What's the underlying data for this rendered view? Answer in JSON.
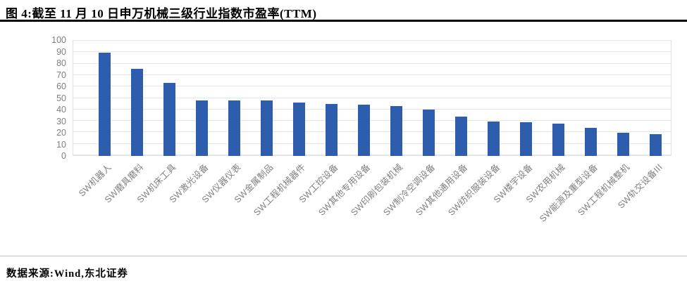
{
  "header": {
    "title": "图 4:截至 11 月 10 日申万机械三级行业指数市盈率(TTM)"
  },
  "footer": {
    "source_label": "数据来源:Wind,东北证券"
  },
  "colors": {
    "bar": "#2e5dad",
    "grid": "#e6e6e6",
    "plot_border": "#e2e2e2",
    "axis_text": "#7f7f7f",
    "title_rule": "#000000",
    "footer_rule": "#bfbfbf"
  },
  "chart_data": {
    "type": "bar",
    "title": "图 4:截至 11 月 10 日申万机械三级行业指数市盈率(TTM)",
    "categories": [
      "SW机器人",
      "SW磨具磨料",
      "SW机床工具",
      "SW激光设备",
      "SW仪器仪表",
      "SW金属制品",
      "SW工程机械器件",
      "SW工控设备",
      "SW其他专用设备",
      "SW印刷包装机械",
      "SW制冷空调设备",
      "SW其他通用设备",
      "SW纺织服装设备",
      "SW楼宇设备",
      "SW农用机械",
      "SW能源及重型设备",
      "SW工程机械整机",
      "SW轨交设备III"
    ],
    "values": [
      89,
      75,
      63,
      48,
      48,
      48,
      46,
      45,
      44,
      43,
      40,
      34,
      30,
      29,
      28,
      24,
      20,
      19
    ],
    "xlabel": "",
    "ylabel": "",
    "ylim": [
      0,
      100
    ],
    "ytick_step": 10,
    "yticks": [
      0,
      10,
      20,
      30,
      40,
      50,
      60,
      70,
      80,
      90,
      100
    ],
    "grid": "horizontal",
    "legend_position": "none",
    "bar_color": "#2e5dad",
    "source": "数据来源:Wind,东北证券"
  }
}
